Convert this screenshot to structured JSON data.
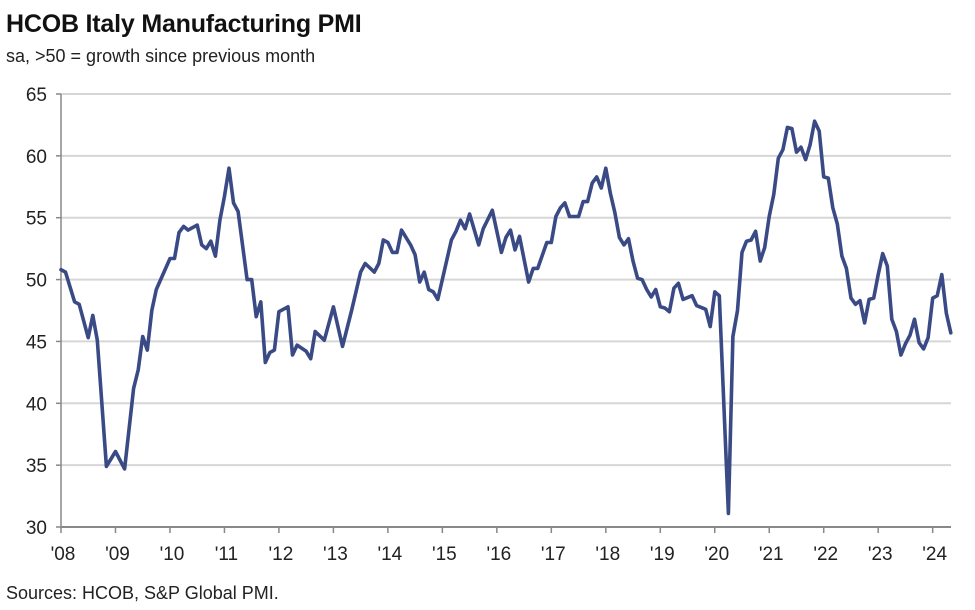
{
  "chart_data": {
    "type": "line",
    "title": "HCOB Italy Manufacturing PMI",
    "subtitle": "sa, >50 = growth since previous month",
    "source": "Sources: HCOB, S&P Global PMI.",
    "xlabel": "",
    "ylabel": "",
    "ylim": [
      30,
      65
    ],
    "yticks": [
      "30",
      "35",
      "40",
      "45",
      "50",
      "55",
      "60",
      "65"
    ],
    "xticks": [
      "'08",
      "'09",
      "'10",
      "'11",
      "'12",
      "'13",
      "'14",
      "'15",
      "'16",
      "'17",
      "'18",
      "'19",
      "'20",
      "'21",
      "'22",
      "'23",
      "'24"
    ],
    "xrange": [
      "2008-01",
      "2024-05"
    ],
    "grid": true,
    "line_color": "#3a4a85",
    "series": [
      {
        "points": [
          [
            "2008-01",
            50.8
          ],
          [
            "2008-02",
            50.6
          ],
          [
            "2008-04",
            48.2
          ],
          [
            "2008-05",
            48.0
          ],
          [
            "2008-07",
            45.3
          ],
          [
            "2008-08",
            47.1
          ],
          [
            "2008-09",
            45.1
          ],
          [
            "2008-11",
            34.9
          ],
          [
            "2009-01",
            36.1
          ],
          [
            "2009-03",
            34.7
          ],
          [
            "2009-05",
            41.2
          ],
          [
            "2009-06",
            42.7
          ],
          [
            "2009-07",
            45.4
          ],
          [
            "2009-08",
            44.3
          ],
          [
            "2009-09",
            47.5
          ],
          [
            "2009-10",
            49.2
          ],
          [
            "2010-01",
            51.7
          ],
          [
            "2010-02",
            51.7
          ],
          [
            "2010-03",
            53.8
          ],
          [
            "2010-04",
            54.3
          ],
          [
            "2010-05",
            54.0
          ],
          [
            "2010-07",
            54.4
          ],
          [
            "2010-08",
            52.8
          ],
          [
            "2010-09",
            52.5
          ],
          [
            "2010-10",
            53.1
          ],
          [
            "2010-11",
            51.9
          ],
          [
            "2010-12",
            54.8
          ],
          [
            "2011-01",
            56.7
          ],
          [
            "2011-02",
            59.0
          ],
          [
            "2011-03",
            56.2
          ],
          [
            "2011-04",
            55.5
          ],
          [
            "2011-06",
            50.0
          ],
          [
            "2011-07",
            50.0
          ],
          [
            "2011-08",
            47.0
          ],
          [
            "2011-09",
            48.2
          ],
          [
            "2011-10",
            43.3
          ],
          [
            "2011-11",
            44.1
          ],
          [
            "2011-12",
            44.3
          ],
          [
            "2012-01",
            47.4
          ],
          [
            "2012-03",
            47.8
          ],
          [
            "2012-04",
            43.9
          ],
          [
            "2012-05",
            44.7
          ],
          [
            "2012-07",
            44.2
          ],
          [
            "2012-08",
            43.6
          ],
          [
            "2012-09",
            45.8
          ],
          [
            "2012-11",
            45.1
          ],
          [
            "2013-01",
            47.8
          ],
          [
            "2013-03",
            44.6
          ],
          [
            "2013-05",
            47.5
          ],
          [
            "2013-07",
            50.6
          ],
          [
            "2013-08",
            51.3
          ],
          [
            "2013-10",
            50.6
          ],
          [
            "2013-11",
            51.3
          ],
          [
            "2013-12",
            53.2
          ],
          [
            "2014-01",
            53.0
          ],
          [
            "2014-02",
            52.2
          ],
          [
            "2014-03",
            52.2
          ],
          [
            "2014-04",
            54.0
          ],
          [
            "2014-06",
            52.8
          ],
          [
            "2014-07",
            52.0
          ],
          [
            "2014-08",
            49.8
          ],
          [
            "2014-09",
            50.6
          ],
          [
            "2014-10",
            49.2
          ],
          [
            "2014-11",
            49.0
          ],
          [
            "2014-12",
            48.4
          ],
          [
            "2015-03",
            53.2
          ],
          [
            "2015-04",
            53.9
          ],
          [
            "2015-05",
            54.8
          ],
          [
            "2015-06",
            54.1
          ],
          [
            "2015-07",
            55.3
          ],
          [
            "2015-09",
            52.8
          ],
          [
            "2015-10",
            54.1
          ],
          [
            "2015-12",
            55.6
          ],
          [
            "2016-02",
            52.2
          ],
          [
            "2016-03",
            53.4
          ],
          [
            "2016-04",
            54.0
          ],
          [
            "2016-05",
            52.4
          ],
          [
            "2016-06",
            53.5
          ],
          [
            "2016-08",
            49.8
          ],
          [
            "2016-09",
            50.9
          ],
          [
            "2016-10",
            50.9
          ],
          [
            "2016-12",
            53.0
          ],
          [
            "2017-01",
            53.0
          ],
          [
            "2017-02",
            55.1
          ],
          [
            "2017-03",
            55.8
          ],
          [
            "2017-04",
            56.2
          ],
          [
            "2017-05",
            55.1
          ],
          [
            "2017-07",
            55.1
          ],
          [
            "2017-08",
            56.3
          ],
          [
            "2017-09",
            56.3
          ],
          [
            "2017-10",
            57.8
          ],
          [
            "2017-11",
            58.3
          ],
          [
            "2017-12",
            57.4
          ],
          [
            "2018-01",
            59.0
          ],
          [
            "2018-02",
            57.0
          ],
          [
            "2018-03",
            55.4
          ],
          [
            "2018-04",
            53.4
          ],
          [
            "2018-05",
            52.8
          ],
          [
            "2018-06",
            53.3
          ],
          [
            "2018-07",
            51.5
          ],
          [
            "2018-08",
            50.1
          ],
          [
            "2018-09",
            50.0
          ],
          [
            "2018-10",
            49.2
          ],
          [
            "2018-11",
            48.6
          ],
          [
            "2018-12",
            49.2
          ],
          [
            "2019-01",
            47.8
          ],
          [
            "2019-02",
            47.7
          ],
          [
            "2019-03",
            47.4
          ],
          [
            "2019-04",
            49.3
          ],
          [
            "2019-05",
            49.7
          ],
          [
            "2019-06",
            48.4
          ],
          [
            "2019-08",
            48.7
          ],
          [
            "2019-09",
            47.9
          ],
          [
            "2019-11",
            47.6
          ],
          [
            "2019-12",
            46.2
          ],
          [
            "2020-01",
            49.0
          ],
          [
            "2020-02",
            48.7
          ],
          [
            "2020-04",
            31.1
          ],
          [
            "2020-05",
            45.4
          ],
          [
            "2020-06",
            47.5
          ],
          [
            "2020-07",
            52.2
          ],
          [
            "2020-08",
            53.1
          ],
          [
            "2020-09",
            53.2
          ],
          [
            "2020-10",
            53.9
          ],
          [
            "2020-11",
            51.5
          ],
          [
            "2020-12",
            52.6
          ],
          [
            "2021-01",
            55.1
          ],
          [
            "2021-02",
            56.9
          ],
          [
            "2021-03",
            59.8
          ],
          [
            "2021-04",
            60.5
          ],
          [
            "2021-05",
            62.3
          ],
          [
            "2021-06",
            62.2
          ],
          [
            "2021-07",
            60.3
          ],
          [
            "2021-08",
            60.7
          ],
          [
            "2021-09",
            59.7
          ],
          [
            "2021-10",
            60.9
          ],
          [
            "2021-11",
            62.8
          ],
          [
            "2021-12",
            62.0
          ],
          [
            "2022-01",
            58.3
          ],
          [
            "2022-02",
            58.2
          ],
          [
            "2022-03",
            55.8
          ],
          [
            "2022-04",
            54.5
          ],
          [
            "2022-05",
            51.9
          ],
          [
            "2022-06",
            50.9
          ],
          [
            "2022-07",
            48.5
          ],
          [
            "2022-08",
            48.0
          ],
          [
            "2022-09",
            48.3
          ],
          [
            "2022-10",
            46.5
          ],
          [
            "2022-11",
            48.4
          ],
          [
            "2022-12",
            48.5
          ],
          [
            "2023-01",
            50.4
          ],
          [
            "2023-02",
            52.1
          ],
          [
            "2023-03",
            51.1
          ],
          [
            "2023-04",
            46.8
          ],
          [
            "2023-05",
            45.8
          ],
          [
            "2023-06",
            43.9
          ],
          [
            "2023-07",
            44.8
          ],
          [
            "2023-08",
            45.5
          ],
          [
            "2023-09",
            46.8
          ],
          [
            "2023-10",
            44.9
          ],
          [
            "2023-11",
            44.4
          ],
          [
            "2023-12",
            45.3
          ],
          [
            "2024-01",
            48.5
          ],
          [
            "2024-02",
            48.7
          ],
          [
            "2024-03",
            50.4
          ],
          [
            "2024-04",
            47.3
          ],
          [
            "2024-05",
            45.7
          ]
        ]
      }
    ]
  }
}
